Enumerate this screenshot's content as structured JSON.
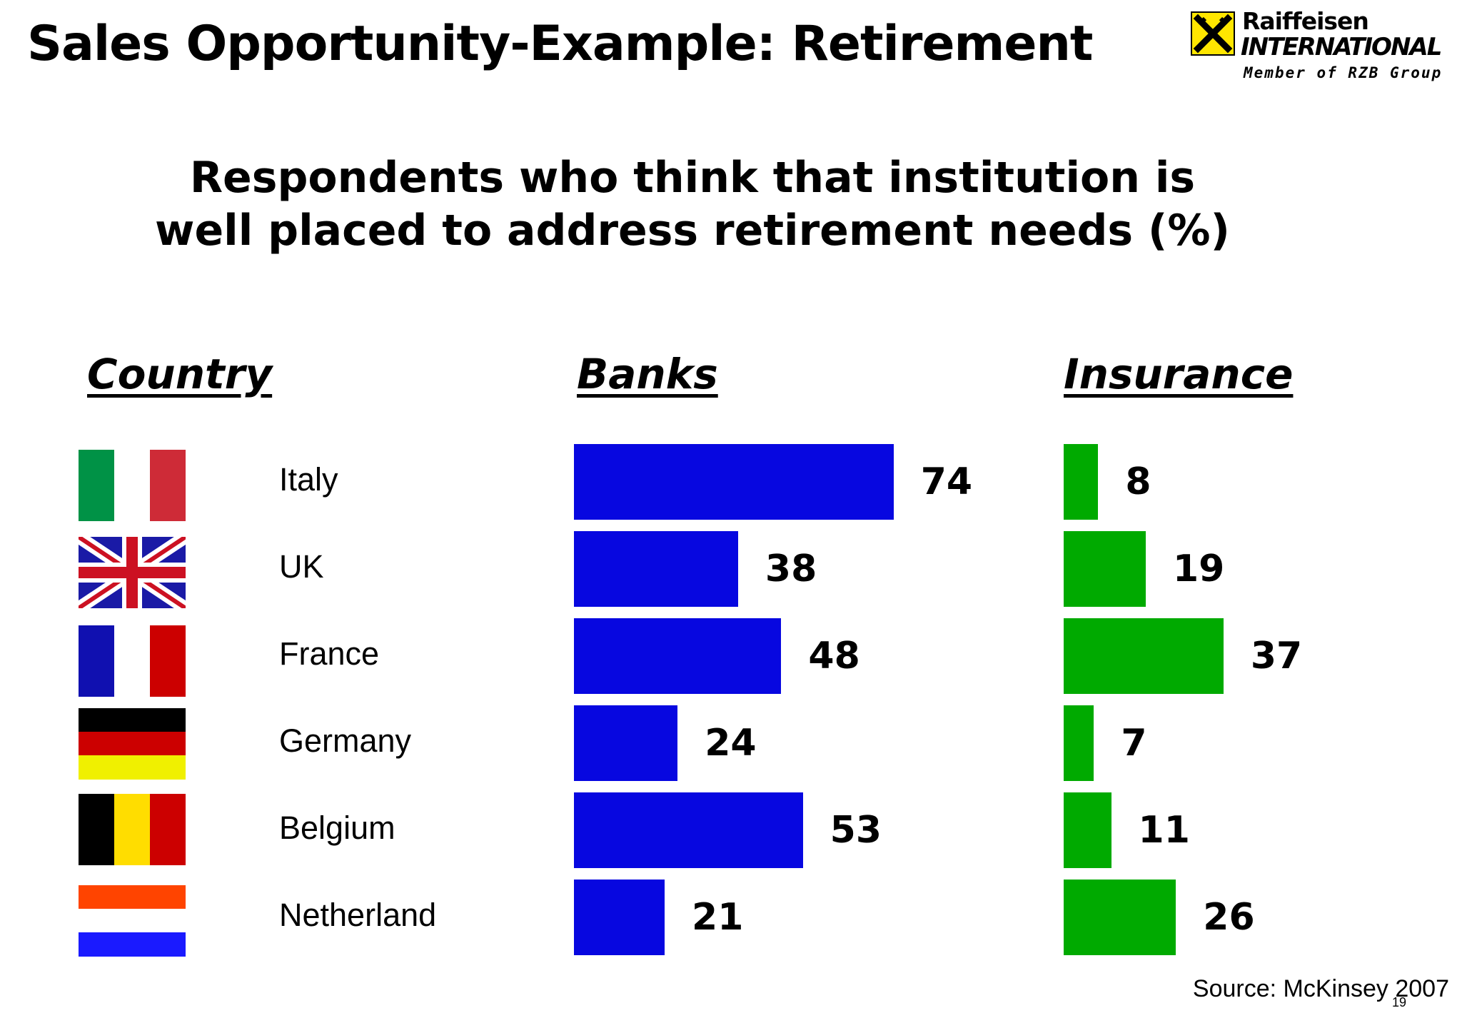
{
  "slide": {
    "title": "Sales Opportunity-Example: Retirement",
    "source": "Source: McKinsey 2007",
    "page_number": "19"
  },
  "logo": {
    "name_line1": "Raiffeisen",
    "name_line2": "INTERNATIONAL",
    "tagline": "Member of RZB Group",
    "accent": "#ffe600"
  },
  "chart_data": {
    "type": "bar",
    "orientation": "horizontal",
    "title": "Respondents who think that institution is well placed to address retirement needs (%)",
    "column_headers": {
      "country": "Country",
      "banks": "Banks",
      "insurance": "Insurance"
    },
    "categories": [
      "Italy",
      "UK",
      "France",
      "Germany",
      "Belgium",
      "Netherland"
    ],
    "series": [
      {
        "name": "Banks",
        "values": [
          74,
          38,
          48,
          24,
          53,
          21
        ],
        "color": "#0707e0"
      },
      {
        "name": "Insurance",
        "values": [
          8,
          19,
          37,
          7,
          11,
          26
        ],
        "color": "#00aa00"
      }
    ],
    "flags": [
      "flag-italy",
      "flag-uk",
      "flag-france",
      "flag-germany",
      "flag-belgium",
      "flag-netherlands"
    ],
    "grid": false,
    "legend": "none"
  }
}
